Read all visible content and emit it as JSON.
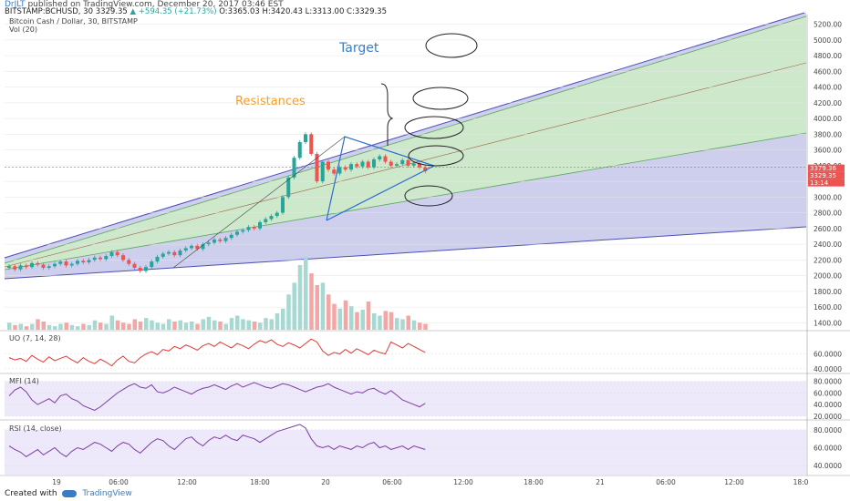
{
  "header": {
    "author": "DrJLT",
    "published": "published on TradingView.com, December 20, 2017 03:46 EST",
    "symbol_line": "BITSTAMP:BCHUSD, 30  3329.35",
    "change": "▲ +594.35 (+21.73%)",
    "ohlc": "O:3365.03 H:3420.43 L:3313.00 C:3329.35"
  },
  "legend": {
    "main": "Bitcoin Cash / Dollar, 30, BITSTAMP",
    "vol": "Vol (20)",
    "uo": "UO (7, 14, 28)",
    "mfi": "MFI (14)",
    "rsi": "RSI (14, close)"
  },
  "annotations": {
    "target": "Target",
    "resistances": "Resistances"
  },
  "footer": {
    "created": "Created with",
    "brand": "TradingView"
  },
  "colors": {
    "up": "#26a69a",
    "down": "#ef5350",
    "blue_band": "#c5c6ea",
    "green_band": "#cdebc6",
    "pane_bg": "#eee8fb",
    "target_text": "#3b7dc4",
    "resist_text": "#f0a030"
  },
  "chart_data": {
    "type": "candlestick",
    "y_axis_labels": [
      "5200.00",
      "5000.00",
      "4800.00",
      "4600.00",
      "4400.00",
      "4200.00",
      "4000.00",
      "3800.00",
      "3600.00",
      "3400.00",
      "3200.00",
      "3000.00",
      "2800.00",
      "2600.00",
      "2400.00",
      "2200.00",
      "2000.00",
      "1800.00",
      "1600.00",
      "1400.00"
    ],
    "ylim": [
      1300,
      5300
    ],
    "price_tags": [
      "3379.36",
      "3329.35",
      "13:14"
    ],
    "x_labels": [
      "19",
      "06:00",
      "12:00",
      "18:00",
      "20",
      "06:00",
      "12:00",
      "18:00",
      "21",
      "06:00",
      "12:00",
      "18:0"
    ],
    "closes": [
      2120,
      2080,
      2130,
      2110,
      2160,
      2140,
      2100,
      2120,
      2150,
      2180,
      2130,
      2150,
      2190,
      2170,
      2200,
      2230,
      2210,
      2250,
      2300,
      2260,
      2200,
      2150,
      2100,
      2060,
      2110,
      2180,
      2240,
      2280,
      2300,
      2260,
      2320,
      2350,
      2380,
      2340,
      2400,
      2420,
      2460,
      2440,
      2480,
      2520,
      2560,
      2580,
      2620,
      2600,
      2680,
      2720,
      2760,
      2800,
      3000,
      3250,
      3500,
      3700,
      3800,
      3550,
      3200,
      3450,
      3350,
      3300,
      3380,
      3350,
      3420,
      3390,
      3450,
      3380,
      3480,
      3520,
      3450,
      3400,
      3420,
      3470,
      3400,
      3430,
      3380,
      3329
    ],
    "volume": [
      6,
      4,
      5,
      3,
      5,
      9,
      7,
      4,
      3,
      5,
      6,
      4,
      3,
      5,
      4,
      8,
      6,
      5,
      12,
      8,
      6,
      5,
      9,
      7,
      10,
      8,
      6,
      5,
      9,
      7,
      8,
      6,
      7,
      5,
      9,
      11,
      8,
      7,
      5,
      10,
      12,
      9,
      8,
      7,
      6,
      10,
      9,
      14,
      18,
      30,
      40,
      55,
      62,
      48,
      38,
      40,
      30,
      22,
      18,
      25,
      20,
      15,
      17,
      24,
      14,
      12,
      16,
      15,
      10,
      9,
      12,
      8,
      6,
      5
    ],
    "uo": {
      "ylim": [
        35,
        90
      ],
      "labels": [
        "60.0000",
        "40.0000"
      ],
      "values": [
        55,
        52,
        54,
        50,
        58,
        53,
        49,
        56,
        51,
        54,
        57,
        52,
        48,
        55,
        50,
        47,
        53,
        49,
        44,
        52,
        57,
        50,
        48,
        55,
        60,
        63,
        59,
        66,
        64,
        70,
        67,
        72,
        69,
        65,
        71,
        74,
        70,
        76,
        72,
        68,
        74,
        71,
        67,
        73,
        78,
        75,
        79,
        73,
        70,
        75,
        72,
        68,
        74,
        80,
        76,
        64,
        58,
        62,
        60,
        66,
        61,
        67,
        63,
        59,
        65,
        62,
        60,
        76,
        72,
        68,
        74,
        70,
        66,
        62
      ]
    },
    "mfi": {
      "ylim": [
        15,
        92
      ],
      "labels": [
        "80.0000",
        "60.0000",
        "40.0000",
        "20.0000"
      ],
      "values": [
        55,
        65,
        70,
        62,
        48,
        40,
        45,
        50,
        43,
        55,
        58,
        50,
        46,
        38,
        34,
        30,
        36,
        44,
        52,
        60,
        66,
        72,
        76,
        70,
        68,
        74,
        62,
        60,
        64,
        70,
        66,
        62,
        58,
        64,
        68,
        70,
        74,
        70,
        66,
        72,
        76,
        70,
        74,
        78,
        74,
        70,
        68,
        72,
        76,
        74,
        70,
        66,
        62,
        66,
        70,
        72,
        76,
        70,
        66,
        62,
        58,
        62,
        60,
        66,
        68,
        62,
        58,
        64,
        56,
        48,
        44,
        40,
        36,
        42
      ]
    },
    "rsi": {
      "ylim": [
        30,
        90
      ],
      "labels": [
        "80.0000",
        "60.0000",
        "40.0000"
      ],
      "values": [
        62,
        58,
        55,
        50,
        54,
        58,
        52,
        56,
        60,
        54,
        50,
        56,
        60,
        58,
        62,
        66,
        64,
        60,
        56,
        62,
        66,
        64,
        58,
        54,
        60,
        66,
        70,
        68,
        62,
        58,
        64,
        70,
        72,
        66,
        62,
        68,
        72,
        70,
        74,
        70,
        68,
        74,
        72,
        70,
        66,
        70,
        74,
        78,
        80,
        82,
        84,
        86,
        82,
        70,
        62,
        60,
        62,
        58,
        62,
        60,
        58,
        62,
        60,
        64,
        66,
        60,
        62,
        58,
        60,
        62,
        58,
        62,
        60,
        58
      ]
    }
  }
}
